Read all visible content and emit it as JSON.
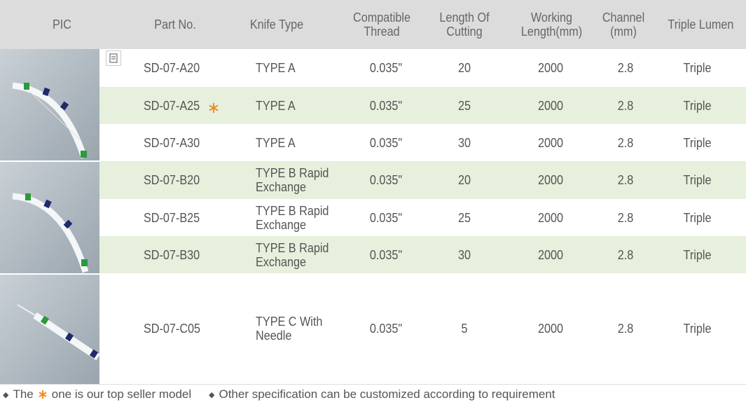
{
  "header": [
    "PIC",
    "Part No.",
    "Knife Type",
    "Compatible Thread",
    "Length Of Cutting",
    "Working Length(mm)",
    "Channel (mm)",
    "Triple Lumen"
  ],
  "rows": [
    [
      "SD-07-A20",
      "TYPE A",
      "0.035\"",
      20,
      2000,
      2.8,
      "Triple"
    ],
    [
      "SD-07-A25",
      "TYPE A",
      "0.035\"",
      25,
      2000,
      2.8,
      "Triple"
    ],
    [
      "SD-07-A30",
      "TYPE A",
      "0.035\"",
      30,
      2000,
      2.8,
      "Triple"
    ],
    [
      "SD-07-B20",
      "TYPE B Rapid Exchange",
      "0.035\"",
      20,
      2000,
      2.8,
      "Triple"
    ],
    [
      "SD-07-B25",
      "TYPE B Rapid Exchange",
      "0.035\"",
      25,
      2000,
      2.8,
      "Triple"
    ],
    [
      "SD-07-B30",
      "TYPE B Rapid Exchange",
      "0.035\"",
      30,
      2000,
      2.8,
      "Triple"
    ],
    [
      "SD-07-C05",
      "TYPE C With Needle",
      "0.035\"",
      5,
      2000,
      2.8,
      "Triple"
    ]
  ],
  "footer": {
    "note1_before": "The",
    "note1_after": "one is our top seller model",
    "note2": "Other specification can be customized according to requirement"
  }
}
